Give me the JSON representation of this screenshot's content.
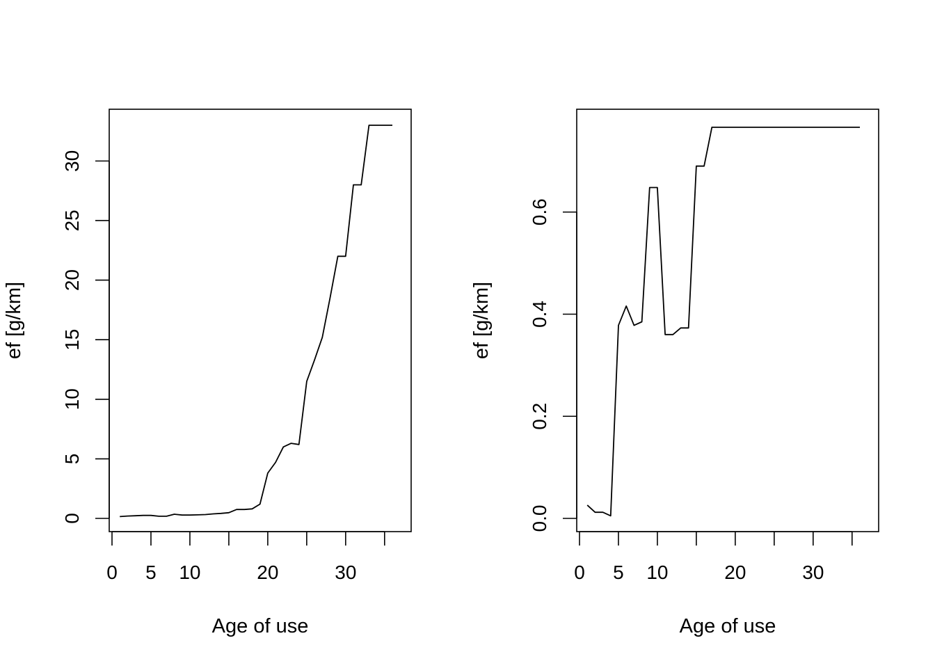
{
  "chart_data": [
    {
      "type": "line",
      "title": "",
      "xlabel": "Age of use",
      "ylabel": "ef [g/km]",
      "xlim": [
        0,
        36
      ],
      "ylim": [
        0,
        33
      ],
      "grid": false,
      "x_ticks": [
        0,
        5,
        10,
        15,
        20,
        25,
        30,
        35
      ],
      "x_tick_labels": [
        "0",
        "5",
        "10",
        "",
        "20",
        "",
        "30",
        ""
      ],
      "y_ticks": [
        0,
        5,
        10,
        15,
        20,
        25,
        30
      ],
      "y_tick_labels": [
        "0",
        "5",
        "10",
        "15",
        "20",
        "25",
        "30"
      ],
      "series": [
        {
          "x": [
            1,
            2,
            3,
            4,
            5,
            6,
            7,
            8,
            9,
            10,
            11,
            12,
            13,
            14,
            15,
            16,
            17,
            18,
            19,
            20,
            21,
            22,
            23,
            24,
            25,
            26,
            27,
            28,
            29,
            30,
            31,
            32,
            33,
            34,
            35,
            36
          ],
          "values": [
            0.15,
            0.2,
            0.22,
            0.25,
            0.25,
            0.18,
            0.18,
            0.35,
            0.28,
            0.28,
            0.3,
            0.32,
            0.38,
            0.42,
            0.48,
            0.75,
            0.75,
            0.8,
            1.2,
            3.8,
            4.7,
            6.0,
            6.3,
            6.2,
            11.5,
            13.3,
            15.2,
            18.5,
            22.0,
            22.0,
            28.0,
            28.0,
            33.0,
            33.0,
            33.0,
            33.0
          ]
        }
      ]
    },
    {
      "type": "line",
      "title": "",
      "xlabel": "Age of use",
      "ylabel": "ef [g/km]",
      "xlim": [
        0,
        36
      ],
      "ylim": [
        0,
        0.77
      ],
      "grid": false,
      "x_ticks": [
        0,
        5,
        10,
        15,
        20,
        25,
        30,
        35
      ],
      "x_tick_labels": [
        "0",
        "5",
        "10",
        "",
        "20",
        "",
        "30",
        ""
      ],
      "y_ticks": [
        0.0,
        0.2,
        0.4,
        0.6
      ],
      "y_tick_labels": [
        "0.0",
        "0.2",
        "0.4",
        "0.6"
      ],
      "series": [
        {
          "x": [
            1,
            2,
            3,
            4,
            5,
            6,
            7,
            8,
            9,
            10,
            11,
            12,
            13,
            14,
            15,
            16,
            17,
            18,
            19,
            20,
            21,
            22,
            23,
            24,
            25,
            26,
            27,
            28,
            29,
            30,
            31,
            32,
            33,
            34,
            35,
            36
          ],
          "values": [
            0.026,
            0.012,
            0.012,
            0.005,
            0.378,
            0.416,
            0.378,
            0.385,
            0.648,
            0.648,
            0.36,
            0.36,
            0.373,
            0.373,
            0.69,
            0.69,
            0.766,
            0.766,
            0.766,
            0.766,
            0.766,
            0.766,
            0.766,
            0.766,
            0.766,
            0.766,
            0.766,
            0.766,
            0.766,
            0.766,
            0.766,
            0.766,
            0.766,
            0.766,
            0.766,
            0.766
          ]
        }
      ]
    }
  ]
}
